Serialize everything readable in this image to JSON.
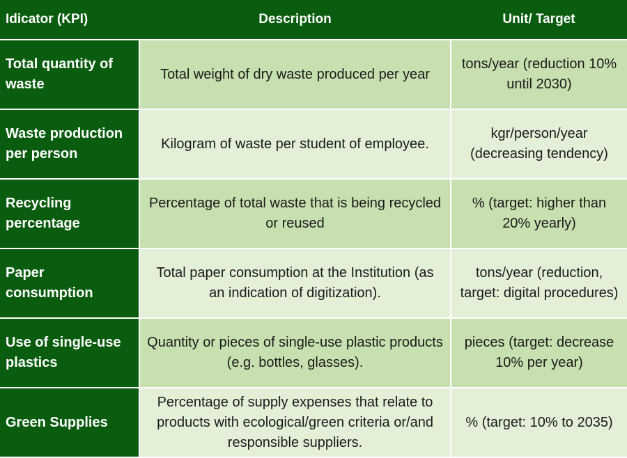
{
  "headers": {
    "indicator": "Idicator (KPI)",
    "description": "Description",
    "unit": "Unit/ Target"
  },
  "rows": [
    {
      "indicator": "Total quantity of waste",
      "description": "Total weight of dry waste produced per year",
      "unit": "tons/year (reduction 10% until 2030)"
    },
    {
      "indicator": "Waste production per person",
      "description": "Kilogram of waste per student of employee.",
      "unit": "kgr/person/year (decreasing tendency)"
    },
    {
      "indicator": "Recycling percentage",
      "description": "Percentage of total waste that is being recycled or reused",
      "unit": "% (target: higher than 20% yearly)"
    },
    {
      "indicator": "Paper consumption",
      "description": "Total paper consumption at the Institution (as an indication of digitization).",
      "unit": "tons/year (reduction, target: digital procedures)"
    },
    {
      "indicator": "Use of single-use plastics",
      "description": "Quantity or pieces of single-use plastic products (e.g. bottles, glasses).",
      "unit": "pieces (target: decrease 10% per year)"
    },
    {
      "indicator": "Green Supplies",
      "description": "Percentage of supply expenses that relate to products with ecological/green criteria or/and responsible suppliers.",
      "unit": "% (target: 10% to 2035)"
    }
  ],
  "colors": {
    "header_bg": "#0a5c0f",
    "row_dark": "#c7e0b0",
    "row_light": "#e4efd8"
  }
}
